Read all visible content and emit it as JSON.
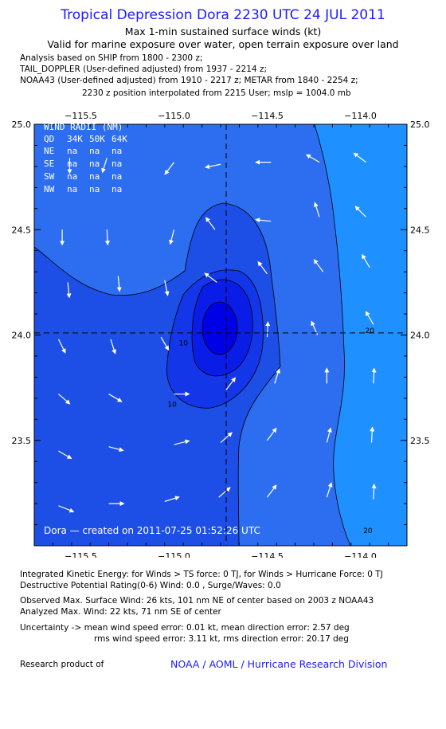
{
  "header": {
    "title": "Tropical Depression Dora 2230 UTC 24 JUL 2011",
    "subtitle1": "Max 1-min sustained surface winds (kt)",
    "subtitle2": "Valid for marine exposure over water, open terrain exposure over land",
    "analysis_lines": [
      "Analysis based on SHIP from 1800 - 2300 z;",
      "TAIL_DOPPLER (User-defined adjusted) from 1937 - 2214 z;",
      "NOAA43 (User-defined adjusted) from 1910 - 2217 z; METAR from 1840 - 2254 z;",
      "2230 z position interpolated from 2215 User; mslp = 1004.0 mb"
    ]
  },
  "wind_radii": {
    "title": "WIND RADII (NM)",
    "header": [
      "QD",
      "34K",
      "50K",
      "64K"
    ],
    "rows": [
      [
        "NE",
        "na",
        "na",
        "na"
      ],
      [
        "SE",
        "na",
        "na",
        "na"
      ],
      [
        "SW",
        "na",
        "na",
        "na"
      ],
      [
        "NW",
        "na",
        "na",
        "na"
      ]
    ]
  },
  "plot_credit": "Dora — created on 2011-07-25 01:52:26 UTC",
  "chart_data": {
    "type": "contour",
    "xlim": [
      -115.75,
      -113.75
    ],
    "ylim": [
      23.0,
      25.0
    ],
    "x_ticks": [
      -115.5,
      -115.0,
      -114.5,
      -114.0
    ],
    "y_ticks": [
      23.5,
      24.0,
      24.5,
      25.0
    ],
    "x_tick_labels": [
      "−115.5",
      "−115.0",
      "−114.5",
      "−114.0"
    ],
    "y_tick_labels": [
      "23.5",
      "24.0",
      "24.5",
      "25.0"
    ],
    "center": {
      "lon": -114.72,
      "lat": 24.01
    },
    "contour_labels": [
      {
        "text": "10",
        "lon": -114.95,
        "lat": 23.95
      },
      {
        "text": "10",
        "lon": -115.01,
        "lat": 23.66
      },
      {
        "text": "20",
        "lon": -113.95,
        "lat": 24.01
      },
      {
        "text": "20",
        "lon": -113.96,
        "lat": 23.06
      }
    ],
    "fill_colors": {
      "lt5": "#2d6ef0",
      "5to10": "#1d4ee6",
      "10to15": "#1236e8",
      "15to20": "#0a1de6",
      "gt20": "#0000e6",
      "outer": "#1e90ff"
    },
    "wind_vectors": [
      {
        "lon": -115.56,
        "lat": 24.84,
        "u": 0.0,
        "v": -1.0
      },
      {
        "lon": -115.36,
        "lat": 24.84,
        "u": -0.3,
        "v": -0.95
      },
      {
        "lon": -115.0,
        "lat": 24.82,
        "u": -0.6,
        "v": -0.8
      },
      {
        "lon": -114.75,
        "lat": 24.81,
        "u": -1.0,
        "v": -0.2
      },
      {
        "lon": -114.48,
        "lat": 24.82,
        "u": -1.0,
        "v": 0.0
      },
      {
        "lon": -114.22,
        "lat": 24.82,
        "u": -0.85,
        "v": 0.5
      },
      {
        "lon": -113.97,
        "lat": 24.82,
        "u": -0.8,
        "v": 0.6
      },
      {
        "lon": -115.6,
        "lat": 24.5,
        "u": 0.0,
        "v": -1.0
      },
      {
        "lon": -115.36,
        "lat": 24.5,
        "u": 0.05,
        "v": -1.0
      },
      {
        "lon": -115.0,
        "lat": 24.5,
        "u": -0.25,
        "v": -0.95
      },
      {
        "lon": -114.78,
        "lat": 24.5,
        "u": -0.6,
        "v": 0.8
      },
      {
        "lon": -114.48,
        "lat": 24.54,
        "u": -1.0,
        "v": 0.1
      },
      {
        "lon": -114.22,
        "lat": 24.56,
        "u": -0.3,
        "v": 0.95
      },
      {
        "lon": -113.97,
        "lat": 24.56,
        "u": -0.7,
        "v": 0.7
      },
      {
        "lon": -115.57,
        "lat": 24.25,
        "u": 0.1,
        "v": -1.0
      },
      {
        "lon": -115.3,
        "lat": 24.28,
        "u": 0.1,
        "v": -1.0
      },
      {
        "lon": -115.05,
        "lat": 24.26,
        "u": 0.2,
        "v": -1.0
      },
      {
        "lon": -114.77,
        "lat": 24.25,
        "u": -0.8,
        "v": 0.6
      },
      {
        "lon": -114.5,
        "lat": 24.29,
        "u": -0.6,
        "v": 0.8
      },
      {
        "lon": -114.2,
        "lat": 24.3,
        "u": -0.6,
        "v": 0.8
      },
      {
        "lon": -113.95,
        "lat": 24.32,
        "u": -0.5,
        "v": 0.85
      },
      {
        "lon": -115.62,
        "lat": 23.98,
        "u": 0.45,
        "v": -0.9
      },
      {
        "lon": -115.34,
        "lat": 23.98,
        "u": 0.3,
        "v": -0.95
      },
      {
        "lon": -115.07,
        "lat": 23.99,
        "u": 0.5,
        "v": -0.85
      },
      {
        "lon": -114.5,
        "lat": 23.99,
        "u": 0.05,
        "v": 1.0
      },
      {
        "lon": -114.23,
        "lat": 24.0,
        "u": -0.4,
        "v": 0.9
      },
      {
        "lon": -113.93,
        "lat": 24.05,
        "u": -0.5,
        "v": 0.85
      },
      {
        "lon": -115.62,
        "lat": 23.72,
        "u": 0.75,
        "v": -0.65
      },
      {
        "lon": -115.35,
        "lat": 23.72,
        "u": 0.85,
        "v": -0.5
      },
      {
        "lon": -115.0,
        "lat": 23.72,
        "u": 1.0,
        "v": 0.0
      },
      {
        "lon": -114.72,
        "lat": 23.74,
        "u": 0.6,
        "v": 0.8
      },
      {
        "lon": -114.46,
        "lat": 23.77,
        "u": 0.3,
        "v": 0.95
      },
      {
        "lon": -114.18,
        "lat": 23.77,
        "u": 0.0,
        "v": 1.0
      },
      {
        "lon": -113.93,
        "lat": 23.77,
        "u": 0.05,
        "v": 1.0
      },
      {
        "lon": -115.62,
        "lat": 23.45,
        "u": 0.85,
        "v": -0.5
      },
      {
        "lon": -115.35,
        "lat": 23.47,
        "u": 0.95,
        "v": -0.25
      },
      {
        "lon": -115.0,
        "lat": 23.48,
        "u": 1.0,
        "v": 0.25
      },
      {
        "lon": -114.75,
        "lat": 23.49,
        "u": 0.75,
        "v": 0.65
      },
      {
        "lon": -114.5,
        "lat": 23.5,
        "u": 0.6,
        "v": 0.8
      },
      {
        "lon": -114.18,
        "lat": 23.49,
        "u": 0.25,
        "v": 0.95
      },
      {
        "lon": -113.94,
        "lat": 23.49,
        "u": 0.05,
        "v": 1.0
      },
      {
        "lon": -115.62,
        "lat": 23.19,
        "u": 1.0,
        "v": -0.4
      },
      {
        "lon": -115.35,
        "lat": 23.2,
        "u": 1.0,
        "v": 0.0
      },
      {
        "lon": -115.05,
        "lat": 23.21,
        "u": 0.95,
        "v": 0.3
      },
      {
        "lon": -114.76,
        "lat": 23.23,
        "u": 0.75,
        "v": 0.65
      },
      {
        "lon": -114.5,
        "lat": 23.23,
        "u": 0.6,
        "v": 0.8
      },
      {
        "lon": -114.18,
        "lat": 23.23,
        "u": 0.3,
        "v": 0.95
      },
      {
        "lon": -113.93,
        "lat": 23.22,
        "u": 0.05,
        "v": 1.0
      }
    ]
  },
  "footer": {
    "ike": "Integrated Kinetic Energy:  for Winds > TS force: 0 TJ,  for Winds > Hurricane Force: 0 TJ",
    "dpr": "Destructive Potential Rating(0-6)   Wind: 0.0 , Surge/Waves: 0.0",
    "observed": "Observed Max. Surface Wind: 26 kts, 101 nm NE of center based on 2003 z NOAA43",
    "analyzed": "Analyzed Max. Wind: 22 kts, 71 nm SE of center",
    "uncertainty1": "Uncertainty -> mean wind speed error: 0.01 kt,   mean direction error: 2.57 deg",
    "uncertainty2": "rms wind speed error: 3.11 kt,   rms direction error: 20.17 deg",
    "research_label": "Research product of",
    "research_org": "NOAA / AOML / Hurricane Research Division"
  }
}
